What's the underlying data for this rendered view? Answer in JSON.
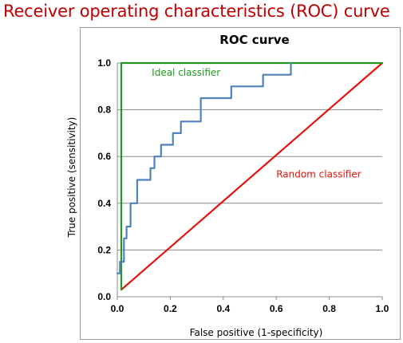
{
  "page": {
    "title": "Receiver operating characteristics (ROC) curve"
  },
  "chart_data": {
    "type": "line",
    "title": "ROC curve",
    "xlabel": "False positive (1-specificity)",
    "ylabel": "True positive (sensitivity)",
    "xlim": [
      0,
      1
    ],
    "ylim": [
      0,
      1
    ],
    "x_ticks": [
      "0.0",
      "0.2",
      "0.4",
      "0.6",
      "0.8",
      "1.0"
    ],
    "y_ticks": [
      "0.0",
      "0.2",
      "0.4",
      "0.6",
      "0.8",
      "1.0"
    ],
    "grid": "horizontal",
    "series": [
      {
        "name": "",
        "color": "#4f81bd",
        "points": [
          [
            0.0,
            0.1
          ],
          [
            0.01,
            0.1
          ],
          [
            0.01,
            0.15
          ],
          [
            0.025,
            0.15
          ],
          [
            0.025,
            0.25
          ],
          [
            0.035,
            0.25
          ],
          [
            0.035,
            0.3
          ],
          [
            0.05,
            0.3
          ],
          [
            0.05,
            0.4
          ],
          [
            0.075,
            0.4
          ],
          [
            0.075,
            0.5
          ],
          [
            0.125,
            0.5
          ],
          [
            0.125,
            0.55
          ],
          [
            0.14,
            0.55
          ],
          [
            0.14,
            0.6
          ],
          [
            0.165,
            0.6
          ],
          [
            0.165,
            0.65
          ],
          [
            0.21,
            0.65
          ],
          [
            0.21,
            0.7
          ],
          [
            0.24,
            0.7
          ],
          [
            0.24,
            0.75
          ],
          [
            0.315,
            0.75
          ],
          [
            0.315,
            0.85
          ],
          [
            0.43,
            0.85
          ],
          [
            0.43,
            0.9
          ],
          [
            0.55,
            0.9
          ],
          [
            0.55,
            0.95
          ],
          [
            0.655,
            0.95
          ],
          [
            0.655,
            1.0
          ]
        ]
      },
      {
        "name": "",
        "color": "#1f9a1f",
        "points": [
          [
            0.015,
            0.03
          ],
          [
            0.015,
            1.0
          ],
          [
            1.0,
            1.0
          ]
        ]
      },
      {
        "name": "",
        "color": "#e3120b",
        "points": [
          [
            0.015,
            0.03
          ],
          [
            1.0,
            1.0
          ]
        ]
      }
    ],
    "annotations": [
      {
        "text": "Ideal classifier",
        "color": "#1f9a1f",
        "x": 0.13,
        "y": 0.945
      },
      {
        "text": "Random classifier",
        "color": "#e3120b",
        "x": 0.6,
        "y": 0.51
      }
    ]
  }
}
